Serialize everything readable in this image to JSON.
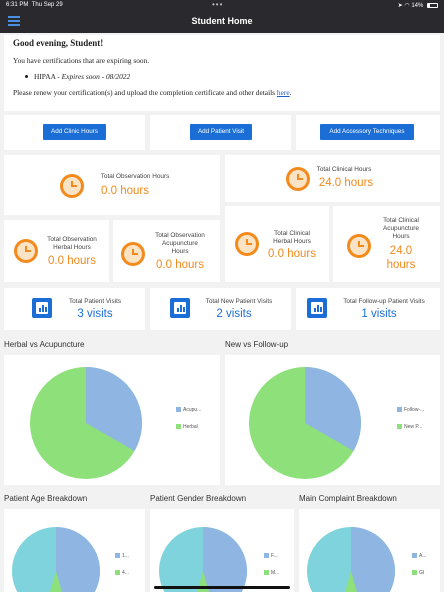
{
  "status": {
    "time": "6:31 PM",
    "date": "Thu Sep 29",
    "battery": "14%"
  },
  "nav": {
    "title": "Student Home"
  },
  "alert": {
    "greeting": "Good evening, Student!",
    "intro": "You have certifications that are expiring soon.",
    "cert_name": "HIPAA",
    "cert_expiry": "Expires soon - 08/2022",
    "renew_text": "Please renew your certification(s) and upload the completion certificate and other details",
    "renew_link": "here"
  },
  "actions": {
    "clinic": "Add Clinic Hours",
    "visit": "Add Patient Visit",
    "accessory": "Add Accessory Techniques"
  },
  "hours": {
    "observation": {
      "label": "Total Observation Hours",
      "value": "0.0 hours"
    },
    "clinical": {
      "label": "Total Clinical Hours",
      "value": "24.0 hours"
    },
    "obs_herbal": {
      "label1": "Total Observation",
      "label2": "Herbal Hours",
      "value": "0.0 hours"
    },
    "obs_acu": {
      "label1": "Total Observation",
      "label2": "Acupuncture",
      "label3": "Hours",
      "value": "0.0 hours"
    },
    "cli_herbal": {
      "label1": "Total Clinical",
      "label2": "Herbal Hours",
      "value": "0.0 hours"
    },
    "cli_acu": {
      "label1": "Total Clinical",
      "label2": "Acupuncture",
      "label3": "Hours",
      "value1": "24.0",
      "value2": "hours"
    }
  },
  "visits": {
    "total": {
      "label": "Total Patient Visits",
      "value": "3 visits"
    },
    "new": {
      "label": "Total New Patient Visits",
      "value": "2 visits"
    },
    "followup": {
      "label": "Total Follow-up Patient Visits",
      "value": "1 visits"
    }
  },
  "charts": {
    "herbal_title": "Herbal vs Acupuncture",
    "herbal_legend": [
      "Acupu...",
      "Herbal"
    ],
    "new_title": "New vs Follow-up",
    "new_legend": [
      "Follow-...",
      "New P..."
    ],
    "age_title": "Patient Age Breakdown",
    "age_legend": [
      "1...",
      "4..."
    ],
    "gender_title": "Patient Gender Breakdown",
    "gender_legend": [
      "F...",
      "M..."
    ],
    "complaint_title": "Main Complaint Breakdown",
    "complaint_legend": [
      "A...",
      "GI"
    ]
  },
  "colors": {
    "accent": "#1b6ed6",
    "orange": "#f28a1c",
    "pie_blue": "#8fb5e3",
    "pie_green": "#8ee07a",
    "pie_teal": "#7fd3dc"
  }
}
